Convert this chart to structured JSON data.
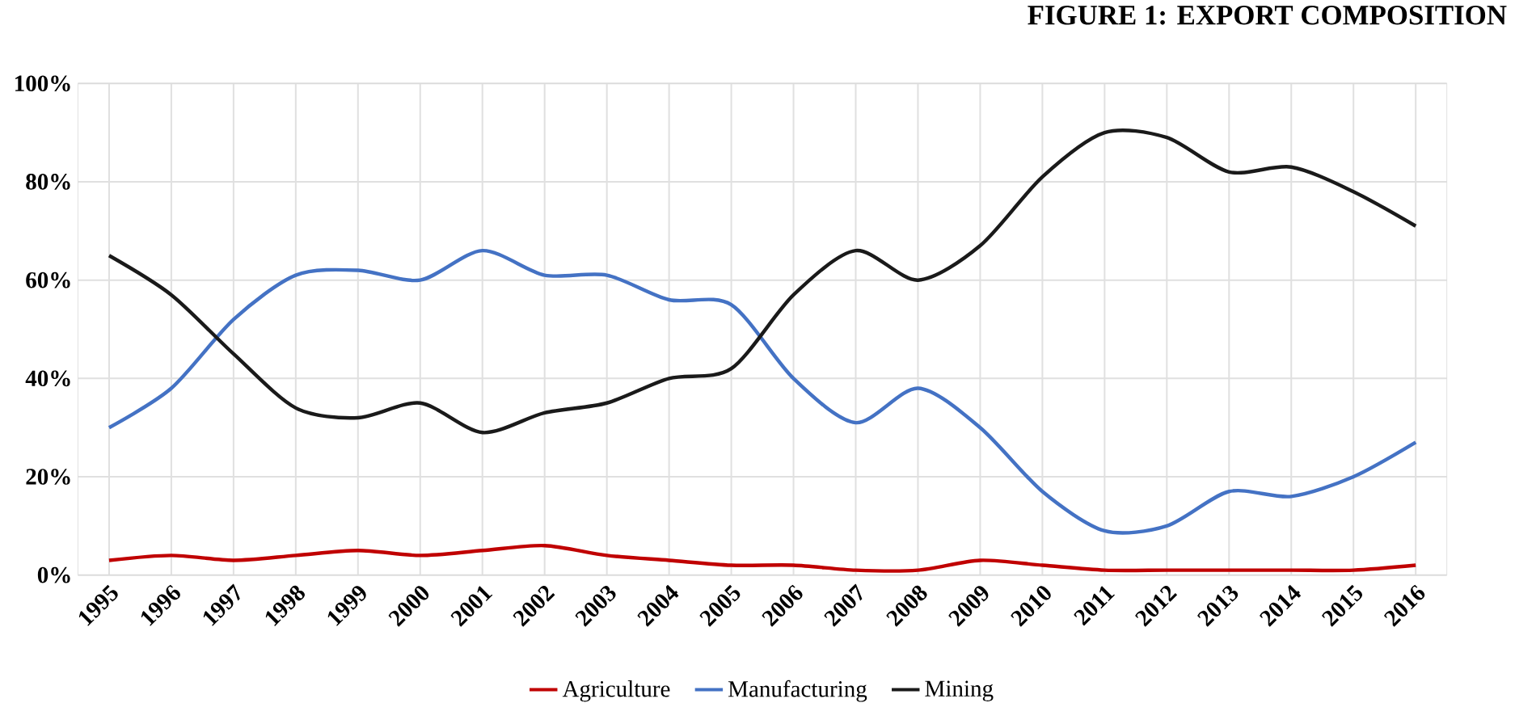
{
  "chart_data": {
    "type": "line",
    "title": "FIGURE 1: EXPORT COMPOSITION",
    "categories": [
      "1995",
      "1996",
      "1997",
      "1998",
      "1999",
      "2000",
      "2001",
      "2002",
      "2003",
      "2004",
      "2005",
      "2006",
      "2007",
      "2008",
      "2009",
      "2010",
      "2011",
      "2012",
      "2013",
      "2014",
      "2015",
      "2016"
    ],
    "series": [
      {
        "name": "Agriculture",
        "color": "#c00000",
        "values": [
          3,
          4,
          3,
          4,
          5,
          4,
          5,
          6,
          4,
          3,
          2,
          2,
          1,
          1,
          3,
          2,
          1,
          1,
          1,
          1,
          1,
          2
        ]
      },
      {
        "name": "Manufacturing",
        "color": "#4472c4",
        "values": [
          30,
          38,
          52,
          61,
          62,
          60,
          66,
          61,
          61,
          56,
          55,
          40,
          31,
          38,
          30,
          17,
          9,
          10,
          17,
          16,
          20,
          27
        ]
      },
      {
        "name": "Mining",
        "color": "#1a1a1a",
        "values": [
          65,
          57,
          45,
          34,
          32,
          35,
          29,
          33,
          35,
          40,
          42,
          57,
          66,
          60,
          67,
          81,
          90,
          89,
          82,
          83,
          78,
          71
        ]
      }
    ],
    "ylim": [
      0,
      100
    ],
    "yticks": [
      {
        "value": 0,
        "label": "0%"
      },
      {
        "value": 20,
        "label": "20%"
      },
      {
        "value": 40,
        "label": "40%"
      },
      {
        "value": 60,
        "label": "60%"
      },
      {
        "value": 80,
        "label": "80%"
      },
      {
        "value": 100,
        "label": "100%"
      }
    ],
    "grid": true,
    "legend": "bottom",
    "marker": "none",
    "line_style": "solid"
  }
}
